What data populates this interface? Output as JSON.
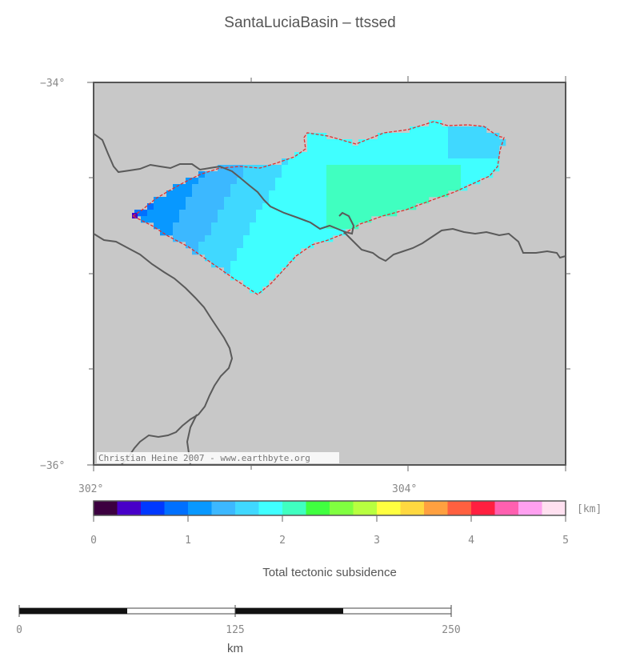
{
  "title": "SantaLuciaBasin – ttssed",
  "map": {
    "lat_labels": [
      "−34°",
      "−36°"
    ],
    "lon_labels": [
      "302°",
      "304°"
    ],
    "credit": "Christian Heine 2007 - www.earthbyte.org",
    "background_color": "#c8c8c8",
    "coastline_color": "#555555",
    "boundary_color": "#e03030"
  },
  "colorbar": {
    "unit": "[km]",
    "tick_labels": [
      "0",
      "1",
      "2",
      "3",
      "4",
      "5"
    ],
    "colors": [
      "#3c0040",
      "#4800c8",
      "#0038ff",
      "#0070ff",
      "#0898ff",
      "#3cb8ff",
      "#40d8ff",
      "#40ffff",
      "#40ffc0",
      "#40ff40",
      "#80ff40",
      "#b8ff40",
      "#ffff40",
      "#ffd840",
      "#ffa040",
      "#ff6040",
      "#ff2040",
      "#ff60b0",
      "#ffa0f0",
      "#ffe0f0"
    ],
    "label": "Total tectonic subsidence"
  },
  "scalebar": {
    "tick_labels": [
      "0",
      "125",
      "250"
    ],
    "unit": "km"
  }
}
